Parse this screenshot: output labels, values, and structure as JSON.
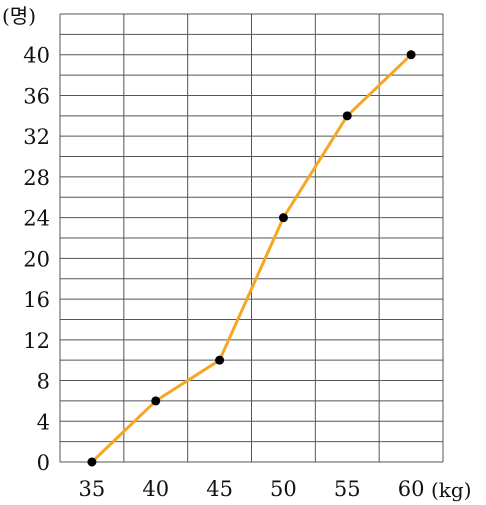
{
  "chart_data": {
    "type": "line",
    "x": [
      35,
      40,
      45,
      50,
      55,
      60
    ],
    "series": [
      {
        "values": [
          0,
          6,
          10,
          24,
          34,
          40
        ]
      }
    ],
    "x_ticks": [
      "35",
      "40",
      "45",
      "50",
      "55",
      "60"
    ],
    "y_ticks": [
      "0",
      "4",
      "8",
      "12",
      "16",
      "20",
      "24",
      "28",
      "32",
      "36",
      "40"
    ],
    "xlabel": "(kg)",
    "ylabel": "(명)",
    "xlim": [
      32.5,
      62.5
    ],
    "ylim": [
      0,
      44
    ],
    "grid": true,
    "line_color": "#f5a623",
    "marker_color": "#000000",
    "grid_color": "#555555"
  }
}
